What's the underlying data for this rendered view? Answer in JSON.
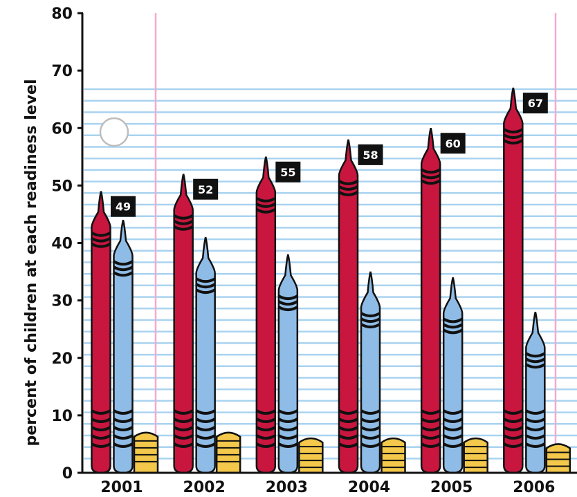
{
  "chart_data": {
    "type": "bar",
    "title": "",
    "xlabel": "",
    "ylabel": "percent of children at each readiness level",
    "ylim": [
      0,
      80
    ],
    "yticks": [
      0,
      10,
      20,
      30,
      40,
      50,
      60,
      70,
      80
    ],
    "categories": [
      "2001",
      "2002",
      "2003",
      "2004",
      "2005",
      "2006"
    ],
    "series": [
      {
        "color": "#c8163f",
        "values": [
          49,
          52,
          55,
          58,
          60,
          67
        ],
        "labels": [
          "49",
          "52",
          "55",
          "58",
          "60",
          "67"
        ]
      },
      {
        "color": "#8fbce6",
        "values": [
          44,
          41,
          38,
          35,
          34,
          28
        ]
      },
      {
        "color": "#f3c84b",
        "values": [
          7,
          7,
          6,
          6,
          6,
          5
        ]
      }
    ],
    "grid": true,
    "legend": "none"
  },
  "colors": {
    "notebook_line": "#a9d3f0",
    "margin_line": "#f4a9cf",
    "hole": "#bdbdbd",
    "crayon_band": "#111111",
    "label_box": "#111111"
  }
}
